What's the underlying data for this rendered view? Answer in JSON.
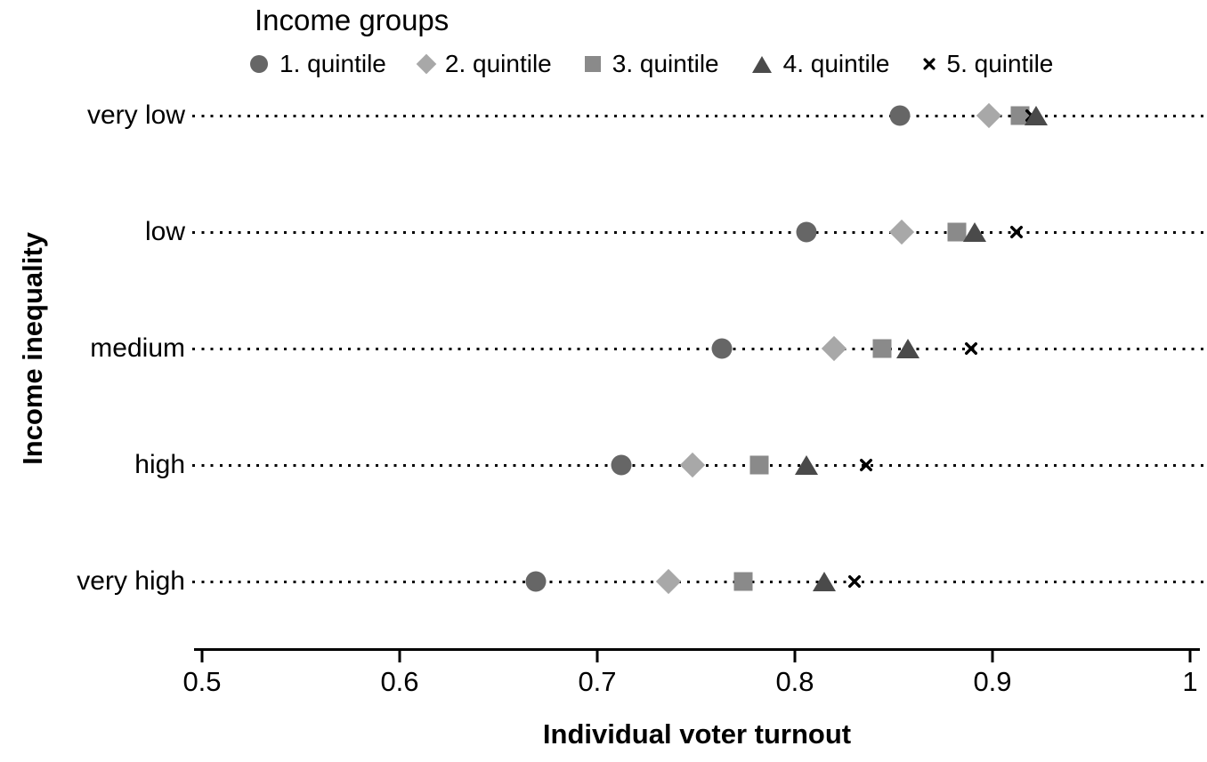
{
  "chart_data": {
    "type": "scatter",
    "title": "",
    "legend_title": "Income groups",
    "xlabel": "Individual voter turnout",
    "ylabel": "Income inequality",
    "xlim": [
      0.5,
      1.0
    ],
    "xticks": [
      0.5,
      0.6,
      0.7,
      0.8,
      0.9,
      1.0
    ],
    "xtick_labels": [
      "0.5",
      "0.6",
      "0.7",
      "0.8",
      "0.9",
      "1"
    ],
    "categories": [
      "very low",
      "low",
      "medium",
      "high",
      "very high"
    ],
    "grid": "dotted horizontal line per category row",
    "legend_position": "top",
    "series": [
      {
        "name": "1. quintile",
        "marker": "circle",
        "color": "#666666",
        "values": [
          0.853,
          0.806,
          0.763,
          0.712,
          0.669
        ]
      },
      {
        "name": "2. quintile",
        "marker": "diamond",
        "color": "#a8a8a8",
        "values": [
          0.898,
          0.854,
          0.82,
          0.748,
          0.736
        ]
      },
      {
        "name": "3. quintile",
        "marker": "square",
        "color": "#8a8a8a",
        "values": [
          0.914,
          0.882,
          0.844,
          0.782,
          0.774
        ]
      },
      {
        "name": "4. quintile",
        "marker": "triangle",
        "color": "#4a4a4a",
        "values": [
          0.922,
          0.891,
          0.857,
          0.806,
          0.815
        ]
      },
      {
        "name": "5. quintile",
        "marker": "x",
        "color": "#000000",
        "values": [
          0.92,
          0.912,
          0.889,
          0.836,
          0.83
        ]
      }
    ]
  },
  "colors": {
    "background": "#ffffff",
    "axis": "#000000",
    "text": "#000000"
  }
}
